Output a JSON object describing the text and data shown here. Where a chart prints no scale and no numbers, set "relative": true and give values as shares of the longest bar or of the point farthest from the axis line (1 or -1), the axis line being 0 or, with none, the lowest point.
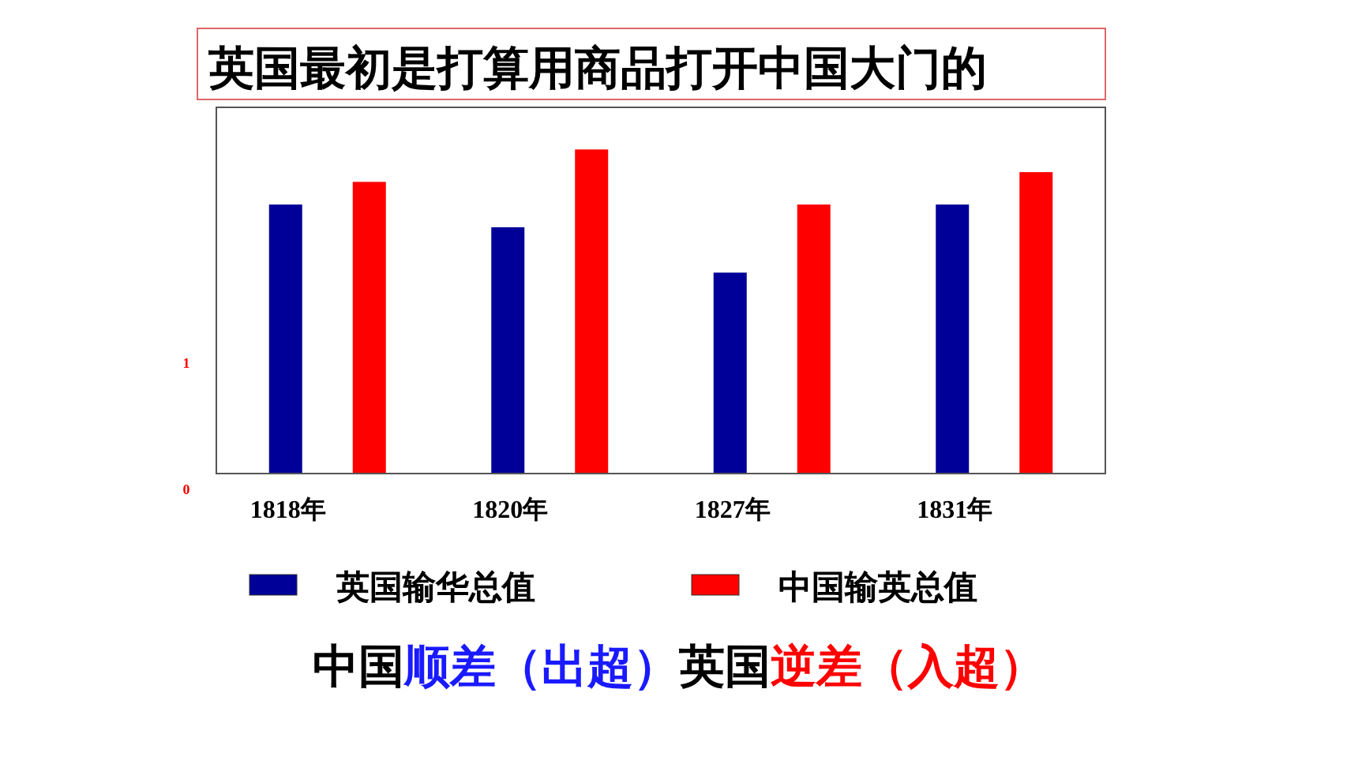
{
  "chart_data": {
    "type": "bar",
    "title": "英国最初是打算用商品打开中国大门的",
    "relative": true,
    "categories": [
      "1818年",
      "1820年",
      "1827年",
      "1831年"
    ],
    "series": [
      {
        "name": "英国输华总值",
        "color": "#000099",
        "values": [
          0.83,
          0.76,
          0.62,
          0.83
        ]
      },
      {
        "name": "中国输英总值",
        "color": "#ff0000",
        "values": [
          0.9,
          1,
          0.83,
          0.93
        ]
      }
    ],
    "legend": "bottom",
    "annotations": [
      "1",
      "0",
      "中国",
      "顺差（出超）",
      "英国",
      "逆差（入超）"
    ]
  }
}
